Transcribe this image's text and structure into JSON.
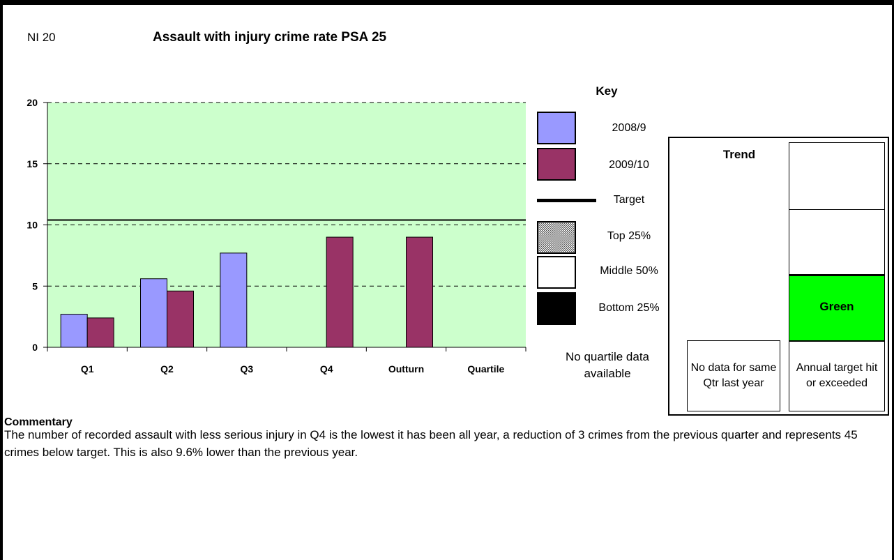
{
  "indicator": "NI 20",
  "title": "Assault with injury crime rate PSA 25",
  "chart_data": {
    "type": "bar",
    "categories": [
      "Q1",
      "Q2",
      "Q3",
      "Q4",
      "Outturn",
      "Quartile"
    ],
    "series": [
      {
        "name": "2008/9",
        "color": "#9999ff",
        "values": [
          2.7,
          5.6,
          7.7,
          null,
          null,
          null
        ]
      },
      {
        "name": "2009/10",
        "color": "#993366",
        "values": [
          2.4,
          4.6,
          null,
          9.0,
          9.0,
          null
        ]
      }
    ],
    "target": 10.4,
    "ylim": [
      0,
      20
    ],
    "yticks": [
      0,
      5,
      10,
      15,
      20
    ],
    "grid": true,
    "background": "#ccffcc"
  },
  "key": {
    "title": "Key",
    "items": [
      {
        "label": "2008/9",
        "swatch": "#9999ff"
      },
      {
        "label": "2009/10",
        "swatch": "#993366"
      },
      {
        "label": "Target",
        "swatch": "line"
      },
      {
        "label": "Top 25%",
        "swatch": "pattern"
      },
      {
        "label": "Middle 50%",
        "swatch": "#ffffff"
      },
      {
        "label": "Bottom 25%",
        "swatch": "#000000"
      }
    ]
  },
  "no_quartile": "No quartile data available",
  "trend": {
    "title": "Trend",
    "status": "Green",
    "status_color": "#00ff00",
    "left_caption": "No data for same Qtr last year",
    "right_caption": "Annual target hit or exceeded"
  },
  "commentary": {
    "heading": "Commentary",
    "text": "The number of recorded assault with less serious injury in Q4 is the lowest it has been all year, a reduction of 3 crimes from the previous quarter and represents 45 crimes below target. This is also 9.6% lower than the previous year."
  }
}
